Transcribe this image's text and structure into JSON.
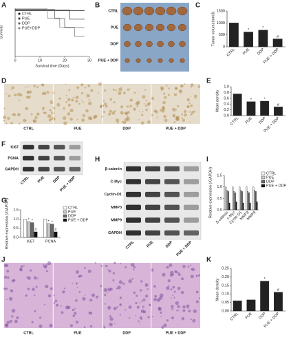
{
  "chart_data": [
    {
      "type": "line",
      "panel": "A",
      "xlabel": "Survival time (Days)",
      "ylabel": "Survival",
      "xlim": [
        0,
        30
      ],
      "xticks": [
        0,
        10,
        20,
        30
      ],
      "ylim": [
        0,
        1.05
      ],
      "legend": "left",
      "series": [
        {
          "name": "CTRL",
          "color": "#222222",
          "x": [
            0,
            28
          ],
          "values": [
            1,
            1
          ]
        },
        {
          "name": "PUE",
          "color": "#444444",
          "x": [
            0,
            22,
            22,
            28
          ],
          "values": [
            1,
            1,
            0.8,
            0.8
          ]
        },
        {
          "name": "DDP",
          "color": "#666666",
          "x": [
            0,
            16,
            16,
            20,
            20,
            28
          ],
          "values": [
            1,
            1,
            0.8,
            0.8,
            0.6,
            0.6
          ]
        },
        {
          "name": "PUE+DDP",
          "color": "#888888",
          "x": [
            0,
            13,
            13,
            18,
            18,
            24,
            24,
            28
          ],
          "values": [
            1,
            1,
            0.8,
            0.8,
            0.6,
            0.6,
            0.4,
            0.4
          ]
        }
      ]
    },
    {
      "type": "bar",
      "panel": "C",
      "ylabel": "Tumor volume(mm3)",
      "categories": [
        "CTRL",
        "PUE",
        "DDP",
        "PUE + DDP"
      ],
      "values": [
        1000,
        620,
        700,
        330
      ],
      "color": "#222222",
      "annotations": [
        null,
        "*",
        "*",
        "#"
      ],
      "ylim": [
        0,
        1500
      ],
      "yticks": [
        0,
        500,
        1000,
        1500
      ]
    },
    {
      "type": "bar",
      "panel": "E",
      "ylabel": "Mean density",
      "categories": [
        "CTRL",
        "PUE",
        "DDP",
        "PUE + DDP"
      ],
      "values": [
        0.75,
        0.48,
        0.5,
        0.3
      ],
      "color": "#222222",
      "annotations": [
        null,
        "*",
        "*",
        "#"
      ],
      "ylim": [
        0,
        1.0
      ],
      "yticks": [
        {
          "value": 0,
          "label": "0.0"
        },
        0.2,
        0.4,
        0.6,
        0.8,
        {
          "value": 1,
          "label": "1.0"
        }
      ]
    },
    {
      "type": "bar",
      "panel": "G",
      "ylabel": "Relative expression (/GAPDH)",
      "categories": [
        "Ki67",
        "PCNA"
      ],
      "ylim": [
        0,
        1.5
      ],
      "yticks": [
        {
          "value": 0,
          "label": "0.0"
        },
        0.5,
        {
          "value": 1,
          "label": "1.0"
        },
        1.5
      ],
      "legend": "right",
      "series": [
        {
          "name": "CTRL",
          "color": "#ffffff",
          "values": [
            1.0,
            1.0
          ]
        },
        {
          "name": "PUE",
          "color": "#cccccc",
          "values": [
            0.85,
            0.75
          ],
          "annotations": [
            "*",
            "*"
          ]
        },
        {
          "name": "DDP",
          "color": "#666666",
          "values": [
            0.8,
            0.72
          ],
          "annotations": [
            "*",
            "*"
          ]
        },
        {
          "name": "PUE + DDP",
          "color": "#111111",
          "values": [
            0.3,
            0.3
          ],
          "annotations": [
            "#",
            "#"
          ]
        }
      ]
    },
    {
      "type": "bar",
      "panel": "I",
      "ylabel": "Relative expression (/GAPDH)",
      "categories": [
        "β-catenin",
        "c-Myc",
        "Cyclin D1",
        "MMP3",
        "MMP9"
      ],
      "ylim": [
        0,
        1.5
      ],
      "yticks": [
        {
          "value": 0,
          "label": "0.0"
        },
        0.5,
        {
          "value": 1,
          "label": "1.0"
        },
        1.5
      ],
      "legend": "right",
      "series": [
        {
          "name": "CTRL",
          "color": "#ffffff",
          "values": [
            1,
            1,
            1,
            1,
            1
          ]
        },
        {
          "name": "PUE",
          "color": "#cccccc",
          "values": [
            0.85,
            0.8,
            0.85,
            0.8,
            0.85
          ]
        },
        {
          "name": "DDP",
          "color": "#666666",
          "values": [
            0.8,
            0.75,
            0.8,
            0.75,
            0.8
          ]
        },
        {
          "name": "PUE + DDP",
          "color": "#111111",
          "values": [
            0.3,
            0.35,
            0.3,
            0.3,
            0.35
          ]
        }
      ]
    },
    {
      "type": "bar",
      "panel": "K",
      "ylabel": "Mean density",
      "categories": [
        "CTRL",
        "PUE",
        "DDP",
        "PUE + DDP"
      ],
      "values": [
        0.06,
        0.065,
        0.175,
        0.11
      ],
      "color": "#222222",
      "annotations": [
        null,
        null,
        "*",
        "#"
      ],
      "ylim": [
        0,
        0.25
      ],
      "yticks": [
        {
          "value": 0,
          "label": "0.00"
        },
        0.05,
        {
          "value": 0.1,
          "label": "0.10"
        },
        0.15,
        {
          "value": 0.2,
          "label": "0.20"
        },
        0.25
      ]
    }
  ],
  "figures": [
    {
      "panel": "B",
      "kind": "photo",
      "rows": [
        "CTRL",
        "PUE",
        "DDP",
        "PUE + DDP"
      ]
    },
    {
      "panel": "D",
      "kind": "stain",
      "columns": [
        "CTRL",
        "PUE",
        "DDP",
        "PUE + DDP"
      ]
    },
    {
      "panel": "F",
      "kind": "blot",
      "rows": [
        "Ki67",
        "PCNA",
        "GAPDH"
      ],
      "columns": [
        "CTRL",
        "PUE",
        "DDP",
        "PUE + DDP"
      ]
    },
    {
      "panel": "H",
      "kind": "blot",
      "rows": [
        "β-catenin",
        "C-Myc",
        "Cyclin-D1",
        "MMP3",
        "MMP9",
        "GAPDH"
      ],
      "columns": [
        "CTRL",
        "PUE",
        "DDP",
        "PUE + DDP"
      ]
    },
    {
      "panel": "J",
      "kind": "he",
      "columns": [
        "CTRL",
        "PUE",
        "DDP",
        "PUE + DDP"
      ]
    }
  ]
}
